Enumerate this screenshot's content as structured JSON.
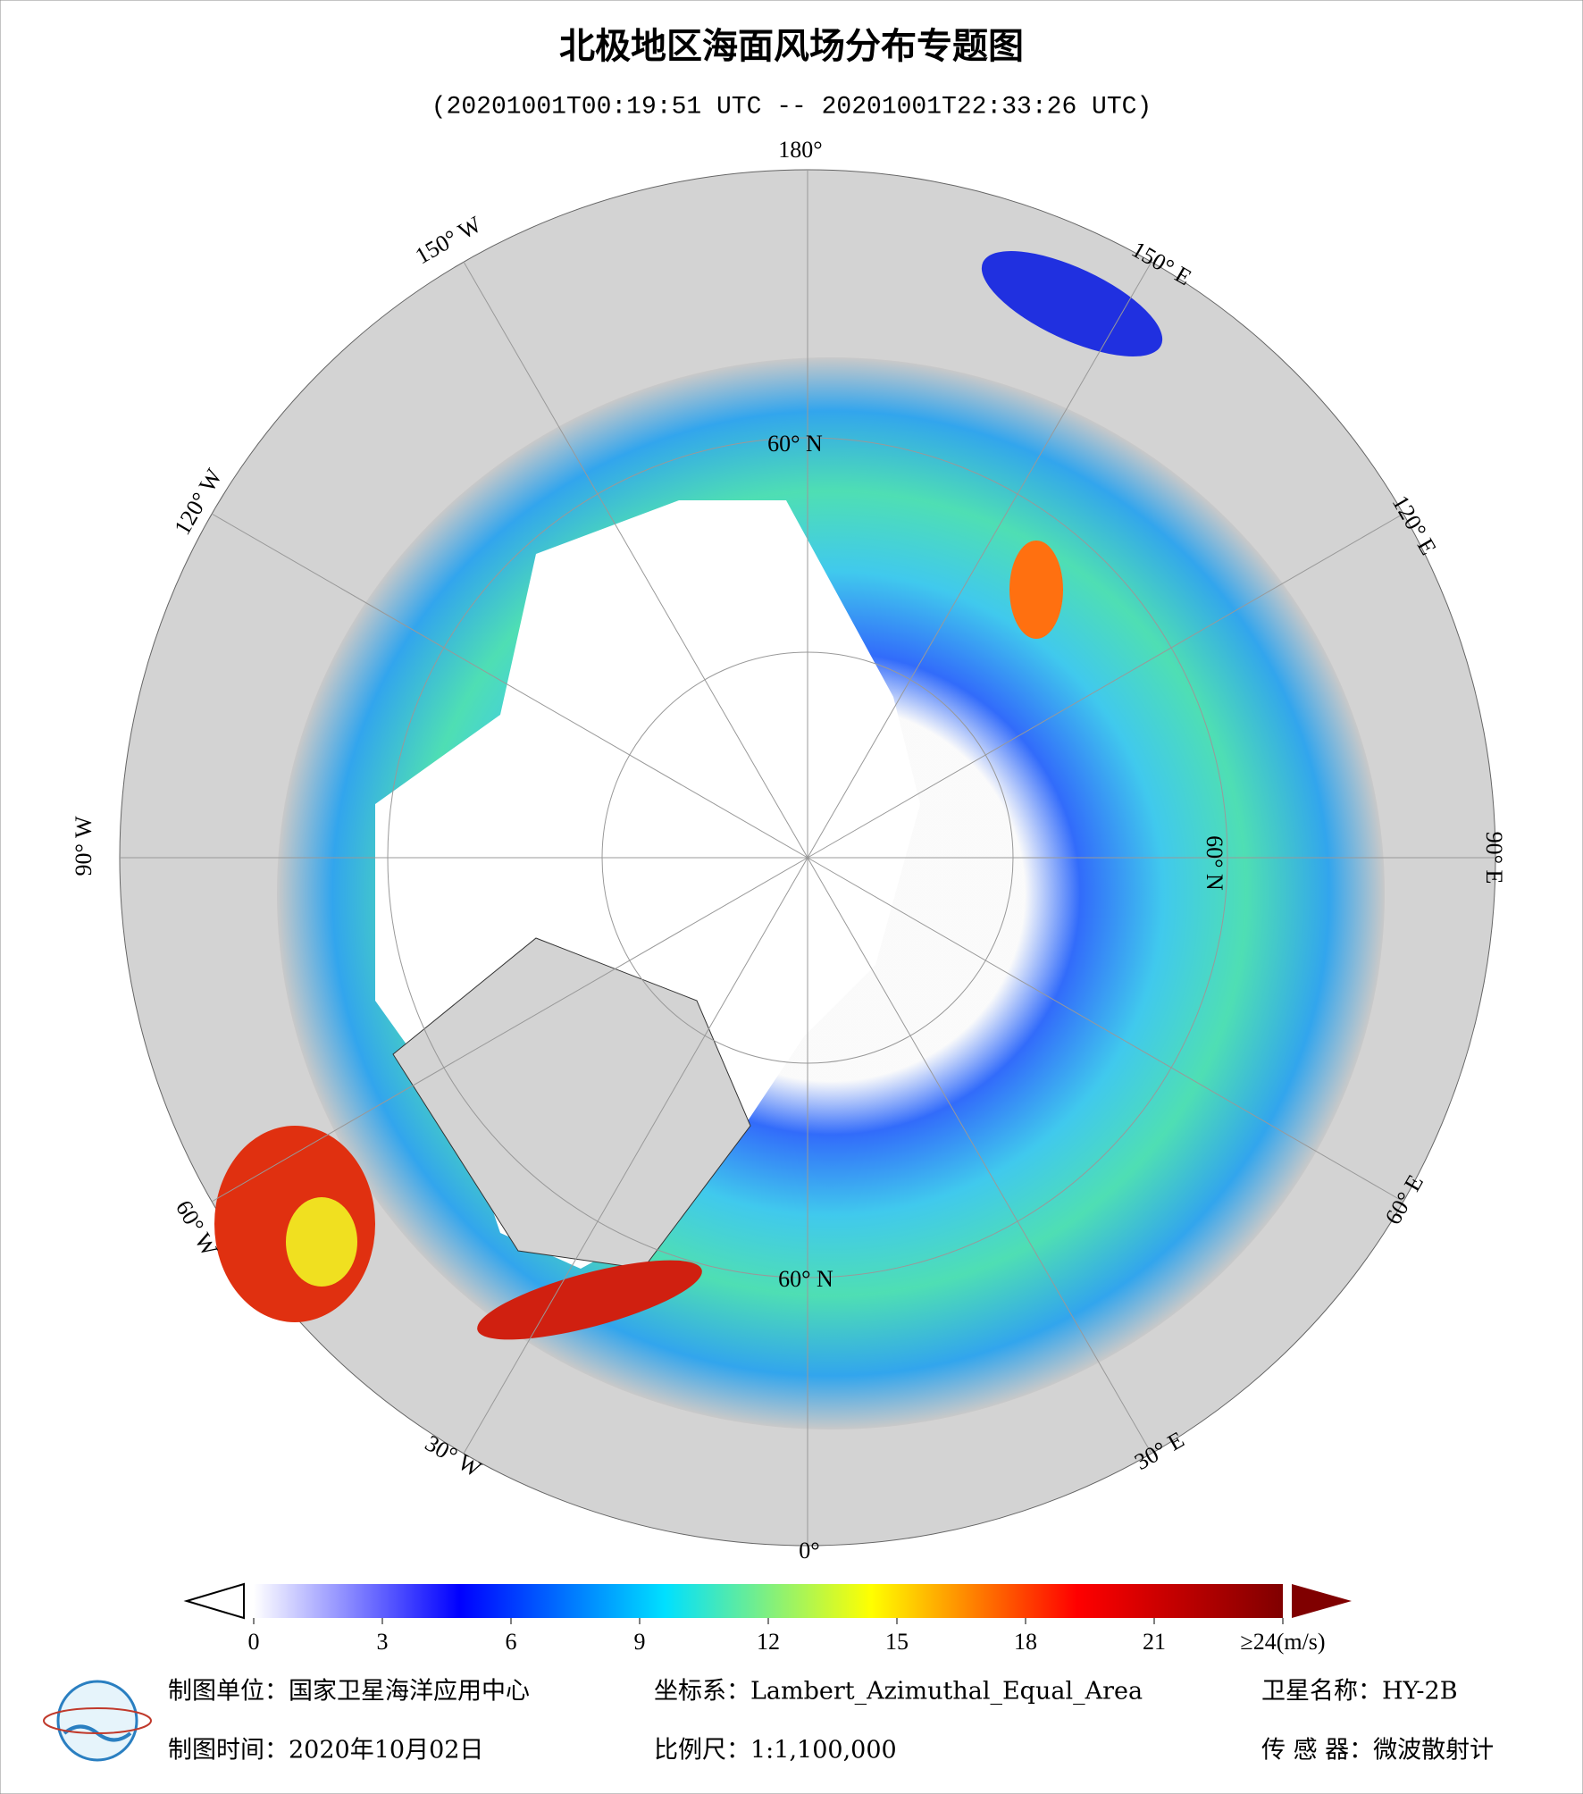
{
  "header": {
    "title": "北极地区海面风场分布专题图",
    "subtitle": "(20201001T00:19:51 UTC -- 20201001T22:33:26 UTC)"
  },
  "graticule": {
    "meridians": [
      "180°",
      "150° E",
      "120° E",
      "90° E",
      "60° E",
      "30° E",
      "0°",
      "30° W",
      "60° W",
      "90° W",
      "120° W",
      "150° W"
    ],
    "parallels": [
      "60° N",
      "60° N",
      "60° N"
    ]
  },
  "colorbar": {
    "lim": [
      0,
      24
    ],
    "ticks": [
      0,
      3,
      6,
      9,
      12,
      15,
      18,
      {
        "value": 21,
        "label": "21"
      },
      {
        "value": 24,
        "label": "≥24(m/s)"
      }
    ],
    "colors": [
      "#ffffff",
      "#0000ff",
      "#00e0ff",
      "#ffff00",
      "#ff0000",
      "#800000"
    ]
  },
  "footer": {
    "row1": [
      "制图单位：国家卫星海洋应用中心",
      "坐标系：Lambert_Azimuthal_Equal_Area",
      "卫星名称：HY-2B"
    ],
    "row2": [
      "制图时间：2020年10月02日",
      "比例尺：1:1,100,000",
      "传 感 器：微波散射计"
    ]
  }
}
